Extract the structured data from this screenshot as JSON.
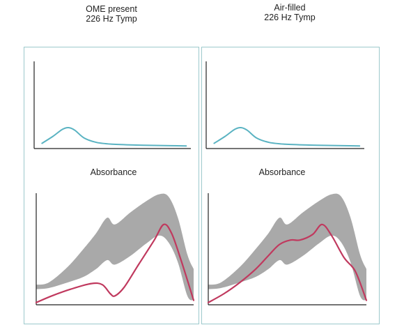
{
  "columns": [
    {
      "title": "OME present\n226 Hz Tymp",
      "absorbance_label": "Absorbance"
    },
    {
      "title": "Air-filled\n226 Hz Tymp",
      "absorbance_label": "Absorbance"
    }
  ],
  "colors": {
    "tymp_curve": "#5ab3c2",
    "norm_band": "#a9a9a9",
    "absorbance_curve": "#c0395e",
    "axis": "#222222",
    "panel_border": "#9cc9cc"
  },
  "chart_data": [
    {
      "type": "line",
      "panel": "OME present 226 Hz Tymp",
      "title": "",
      "xlabel": "",
      "ylabel": "",
      "xlim": [
        0,
        1
      ],
      "ylim": [
        0,
        1
      ],
      "series": [
        {
          "x": [
            0.05,
            0.12,
            0.18,
            0.22,
            0.26,
            0.32,
            0.4,
            0.5,
            0.65,
            0.8,
            0.97
          ],
          "values": [
            0.06,
            0.14,
            0.22,
            0.24,
            0.21,
            0.12,
            0.07,
            0.05,
            0.04,
            0.035,
            0.03
          ]
        }
      ]
    },
    {
      "type": "line",
      "panel": "OME present Absorbance",
      "title": "Absorbance",
      "xlabel": "",
      "ylabel": "",
      "xlim": [
        0,
        1
      ],
      "ylim": [
        0,
        1
      ],
      "series": [
        {
          "role": "band-upper",
          "x": [
            0,
            0.08,
            0.2,
            0.3,
            0.38,
            0.45,
            0.5,
            0.6,
            0.7,
            0.78,
            0.84,
            0.9,
            0.96,
            1.0
          ],
          "values": [
            0.18,
            0.2,
            0.34,
            0.5,
            0.64,
            0.78,
            0.72,
            0.83,
            0.93,
            0.99,
            0.97,
            0.78,
            0.45,
            0.32
          ]
        },
        {
          "role": "band-lower",
          "x": [
            0,
            0.08,
            0.2,
            0.3,
            0.38,
            0.45,
            0.5,
            0.6,
            0.7,
            0.78,
            0.84,
            0.9,
            0.96,
            1.0
          ],
          "values": [
            0.14,
            0.15,
            0.2,
            0.25,
            0.32,
            0.4,
            0.36,
            0.44,
            0.55,
            0.62,
            0.56,
            0.38,
            0.08,
            0.04
          ]
        },
        {
          "role": "absorbance",
          "x": [
            0,
            0.1,
            0.22,
            0.35,
            0.42,
            0.47,
            0.5,
            0.56,
            0.65,
            0.75,
            0.81,
            0.86,
            0.92,
            1.0
          ],
          "values": [
            0.02,
            0.08,
            0.14,
            0.19,
            0.18,
            0.1,
            0.08,
            0.16,
            0.36,
            0.58,
            0.72,
            0.64,
            0.4,
            0.04
          ]
        }
      ]
    },
    {
      "type": "line",
      "panel": "Air-filled 226 Hz Tymp",
      "title": "",
      "xlabel": "",
      "ylabel": "",
      "xlim": [
        0,
        1
      ],
      "ylim": [
        0,
        1
      ],
      "series": [
        {
          "x": [
            0.05,
            0.12,
            0.18,
            0.22,
            0.26,
            0.32,
            0.4,
            0.5,
            0.65,
            0.8,
            0.97
          ],
          "values": [
            0.06,
            0.14,
            0.22,
            0.24,
            0.21,
            0.12,
            0.07,
            0.05,
            0.04,
            0.035,
            0.03
          ]
        }
      ]
    },
    {
      "type": "line",
      "panel": "Air-filled Absorbance",
      "title": "Absorbance",
      "xlabel": "",
      "ylabel": "",
      "xlim": [
        0,
        1
      ],
      "ylim": [
        0,
        1
      ],
      "series": [
        {
          "role": "band-upper",
          "x": [
            0,
            0.08,
            0.2,
            0.3,
            0.38,
            0.45,
            0.5,
            0.6,
            0.7,
            0.78,
            0.84,
            0.9,
            0.96,
            1.0
          ],
          "values": [
            0.18,
            0.2,
            0.34,
            0.5,
            0.64,
            0.78,
            0.72,
            0.83,
            0.93,
            0.99,
            0.97,
            0.78,
            0.45,
            0.32
          ]
        },
        {
          "role": "band-lower",
          "x": [
            0,
            0.08,
            0.2,
            0.3,
            0.38,
            0.45,
            0.5,
            0.6,
            0.7,
            0.78,
            0.84,
            0.9,
            0.96,
            1.0
          ],
          "values": [
            0.14,
            0.15,
            0.2,
            0.25,
            0.32,
            0.4,
            0.36,
            0.44,
            0.55,
            0.62,
            0.56,
            0.38,
            0.08,
            0.04
          ]
        },
        {
          "role": "absorbance",
          "x": [
            0,
            0.1,
            0.2,
            0.3,
            0.38,
            0.45,
            0.52,
            0.58,
            0.66,
            0.72,
            0.78,
            0.86,
            0.93,
            1.0
          ],
          "values": [
            0.02,
            0.1,
            0.2,
            0.32,
            0.44,
            0.54,
            0.58,
            0.58,
            0.63,
            0.72,
            0.62,
            0.42,
            0.3,
            0.04
          ]
        }
      ]
    }
  ]
}
